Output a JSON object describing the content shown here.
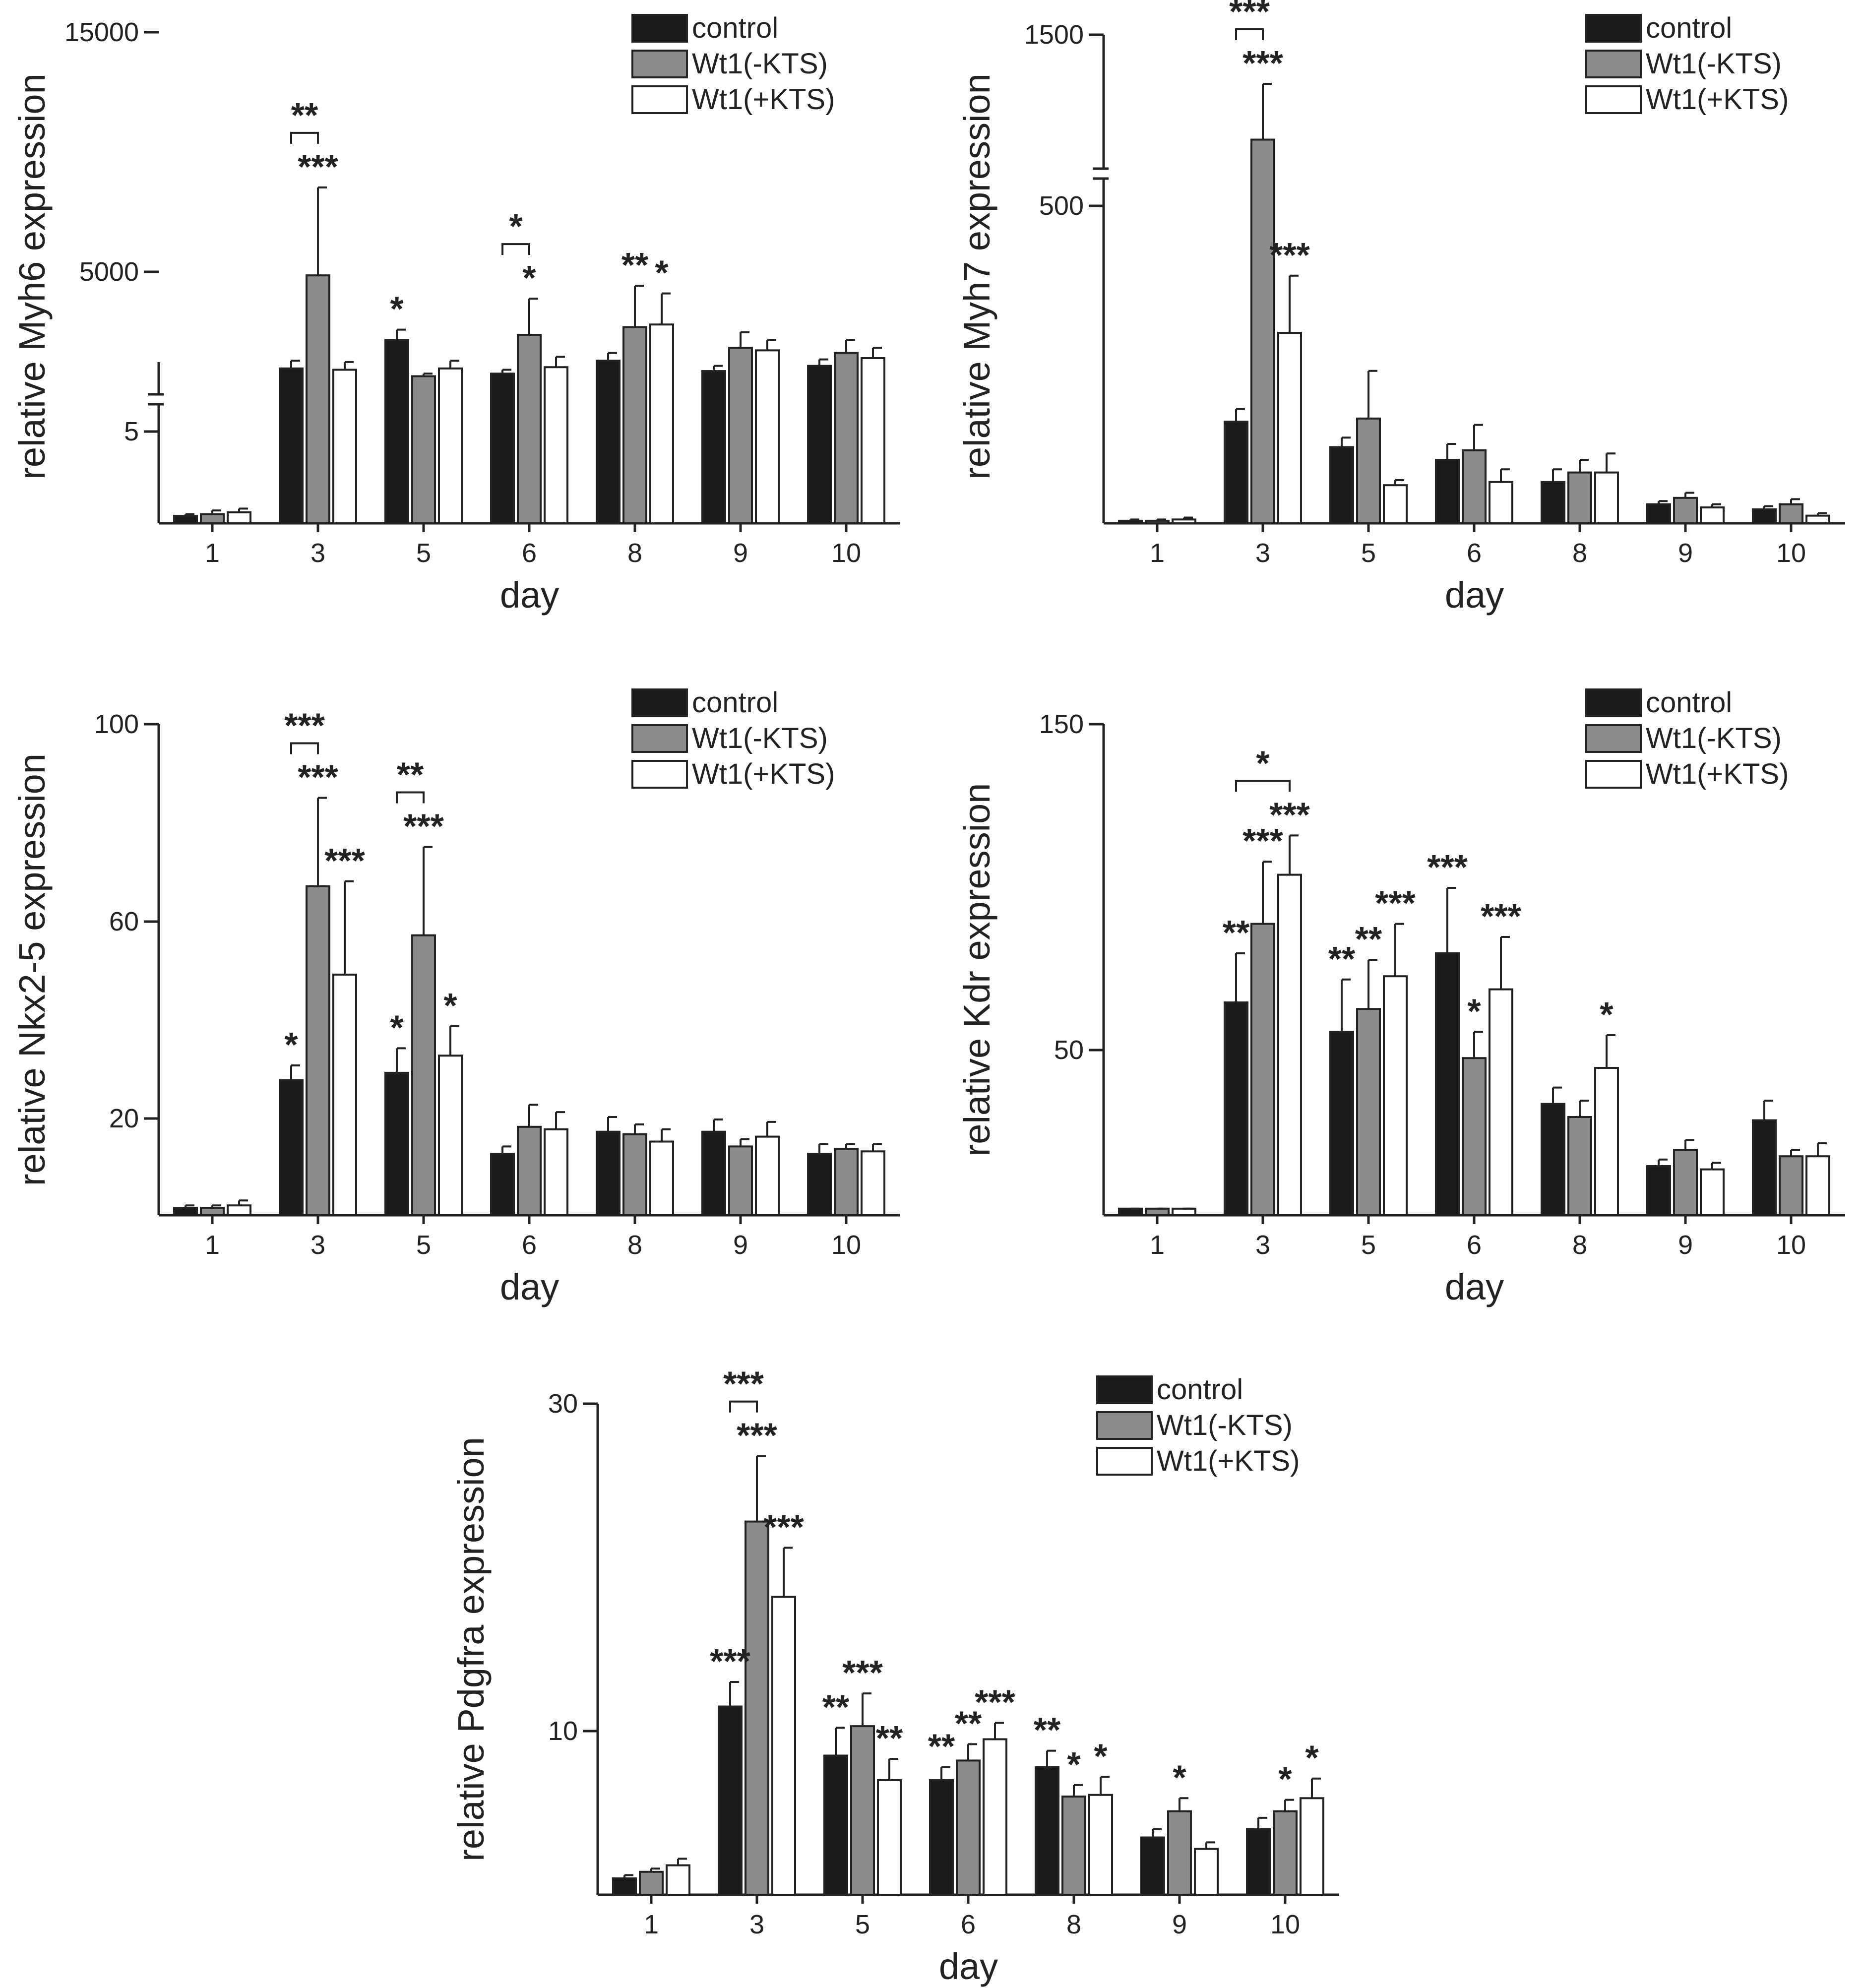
{
  "colors": {
    "control": "#1a1a1a",
    "wt1_minus_kts": "#8c8c8c",
    "wt1_plus_kts": "#ffffff",
    "axis": "#222222"
  },
  "chart_data": [
    {
      "type": "bar",
      "ylabel": "relative Myh6 expression",
      "xlabel": "day",
      "categories": [
        "1",
        "3",
        "5",
        "6",
        "8",
        "9",
        "10"
      ],
      "legend": [
        "control",
        "Wt1(-KTS)",
        "Wt1(+KTS)"
      ],
      "axis_break": true,
      "yticks": [
        "5",
        "5000",
        "15000"
      ],
      "series": [
        {
          "name": "control",
          "values": [
            0.4,
            2000,
            3100,
            1800,
            2300,
            1900,
            2100
          ],
          "errors": [
            0.1,
            300,
            400,
            150,
            300,
            200,
            250
          ]
        },
        {
          "name": "Wt1(-KTS)",
          "values": [
            0.5,
            5600,
            1700,
            3300,
            3600,
            2800,
            2600
          ],
          "errors": [
            0.2,
            3400,
            100,
            1400,
            1600,
            600,
            500
          ]
        },
        {
          "name": "Wt1(+KTS)",
          "values": [
            0.6,
            1950,
            2000,
            2050,
            3700,
            2700,
            2400
          ],
          "errors": [
            0.2,
            300,
            300,
            400,
            1200,
            400,
            400
          ]
        }
      ],
      "significance": [
        {
          "day": "3",
          "bracket": "**",
          "marks": [
            "",
            "***",
            ""
          ]
        },
        {
          "day": "5",
          "marks": [
            "*",
            "",
            ""
          ]
        },
        {
          "day": "6",
          "bracket": "*",
          "marks": [
            "",
            "*",
            ""
          ]
        },
        {
          "day": "8",
          "marks": [
            "",
            "**",
            "*"
          ]
        }
      ]
    },
    {
      "type": "bar",
      "ylabel": "relative Myh7 expression",
      "xlabel": "day",
      "categories": [
        "1",
        "3",
        "5",
        "6",
        "8",
        "9",
        "10"
      ],
      "legend": [
        "control",
        "Wt1(-KTS)",
        "Wt1(+KTS)"
      ],
      "axis_break": true,
      "yticks": [
        "500",
        "1500"
      ],
      "series": [
        {
          "name": "control",
          "values": [
            4,
            160,
            120,
            100,
            65,
            30,
            22
          ],
          "errors": [
            2,
            20,
            15,
            25,
            20,
            5,
            5
          ]
        },
        {
          "name": "Wt1(-KTS)",
          "values": [
            4,
            1030,
            165,
            115,
            80,
            40,
            30
          ],
          "errors": [
            2,
            250,
            75,
            40,
            20,
            8,
            8
          ]
        },
        {
          "name": "Wt1(+KTS)",
          "values": [
            6,
            300,
            60,
            65,
            80,
            25,
            12
          ],
          "errors": [
            3,
            90,
            8,
            20,
            30,
            5,
            4
          ]
        }
      ],
      "significance": [
        {
          "day": "3",
          "bracket": "***",
          "marks": [
            "",
            "***",
            "***"
          ]
        }
      ]
    },
    {
      "type": "bar",
      "ylabel": "relative Nkx2-5 expression",
      "xlabel": "day",
      "categories": [
        "1",
        "3",
        "5",
        "6",
        "8",
        "9",
        "10"
      ],
      "legend": [
        "control",
        "Wt1(-KTS)",
        "Wt1(+KTS)"
      ],
      "yticks": [
        "20",
        "60",
        "100"
      ],
      "ylim": [
        0,
        100
      ],
      "series": [
        {
          "name": "control",
          "values": [
            1.5,
            27.5,
            29,
            12.5,
            17,
            17,
            12.5
          ],
          "errors": [
            0.5,
            3,
            5,
            1.5,
            3,
            2.5,
            2
          ]
        },
        {
          "name": "Wt1(-KTS)",
          "values": [
            1.5,
            67,
            57,
            18,
            16.5,
            14,
            13.5
          ],
          "errors": [
            0.5,
            18,
            18,
            4.5,
            2,
            1.5,
            1
          ]
        },
        {
          "name": "Wt1(+KTS)",
          "values": [
            2,
            49,
            32.5,
            17.5,
            15,
            16,
            13
          ],
          "errors": [
            1,
            19,
            6,
            3.5,
            2.5,
            3,
            1.5
          ]
        }
      ],
      "significance": [
        {
          "day": "3",
          "bracket": "***",
          "marks": [
            "*",
            "***",
            "***"
          ]
        },
        {
          "day": "5",
          "bracket": "**",
          "marks": [
            "*",
            "***",
            "*"
          ]
        }
      ]
    },
    {
      "type": "bar",
      "ylabel": "relative Kdr expression",
      "xlabel": "day",
      "categories": [
        "1",
        "3",
        "5",
        "6",
        "8",
        "9",
        "10"
      ],
      "legend": [
        "control",
        "Wt1(-KTS)",
        "Wt1(+KTS)"
      ],
      "yticks": [
        "50",
        "150"
      ],
      "ylim": [
        0,
        150
      ],
      "series": [
        {
          "name": "control",
          "values": [
            2,
            65,
            56,
            80,
            34,
            15,
            29
          ],
          "errors": [
            0,
            15,
            16,
            20,
            5,
            2,
            6
          ]
        },
        {
          "name": "Wt1(-KTS)",
          "values": [
            2,
            89,
            63,
            48,
            30,
            20,
            18
          ],
          "errors": [
            0,
            19,
            15,
            8,
            5,
            3,
            2
          ]
        },
        {
          "name": "Wt1(+KTS)",
          "values": [
            2,
            104,
            73,
            69,
            45,
            14,
            18
          ],
          "errors": [
            0,
            12,
            16,
            16,
            10,
            2,
            4
          ]
        }
      ],
      "significance": [
        {
          "day": "3",
          "bracket": "*",
          "bracket_span": "control-Wt1(+KTS)",
          "marks": [
            "**",
            "***",
            "***"
          ]
        },
        {
          "day": "5",
          "marks": [
            "**",
            "**",
            "***"
          ]
        },
        {
          "day": "6",
          "marks": [
            "***",
            "*",
            "***"
          ]
        },
        {
          "day": "8",
          "marks": [
            "",
            "",
            "*"
          ]
        }
      ]
    },
    {
      "type": "bar",
      "ylabel": "relative Pdgfra expression",
      "xlabel": "day",
      "categories": [
        "1",
        "3",
        "5",
        "6",
        "8",
        "9",
        "10"
      ],
      "legend": [
        "control",
        "Wt1(-KTS)",
        "Wt1(+KTS)"
      ],
      "yticks": [
        "10",
        "30"
      ],
      "ylim": [
        0,
        30
      ],
      "series": [
        {
          "name": "control",
          "values": [
            1,
            11.5,
            8.5,
            7,
            7.8,
            3.5,
            4
          ],
          "errors": [
            0.2,
            1.5,
            1.7,
            0.8,
            1,
            0.5,
            0.7
          ]
        },
        {
          "name": "Wt1(-KTS)",
          "values": [
            1.4,
            22.8,
            10.3,
            8.2,
            6,
            5.1,
            5.1
          ],
          "errors": [
            0.2,
            4,
            2,
            1,
            0.7,
            0.8,
            0.7
          ]
        },
        {
          "name": "Wt1(+KTS)",
          "values": [
            1.8,
            18.2,
            7,
            9.5,
            6.1,
            2.8,
            5.9
          ],
          "errors": [
            0.4,
            3,
            1.3,
            1,
            1.1,
            0.4,
            1.2
          ]
        }
      ],
      "significance": [
        {
          "day": "3",
          "bracket": "***",
          "marks": [
            "***",
            "***",
            "***"
          ]
        },
        {
          "day": "5",
          "marks": [
            "**",
            "***",
            "**"
          ]
        },
        {
          "day": "6",
          "marks": [
            "**",
            "**",
            "***"
          ]
        },
        {
          "day": "8",
          "marks": [
            "**",
            "*",
            "*"
          ]
        },
        {
          "day": "9",
          "marks": [
            "",
            "*",
            ""
          ]
        },
        {
          "day": "10",
          "marks": [
            "",
            "*",
            "*"
          ]
        }
      ]
    }
  ]
}
